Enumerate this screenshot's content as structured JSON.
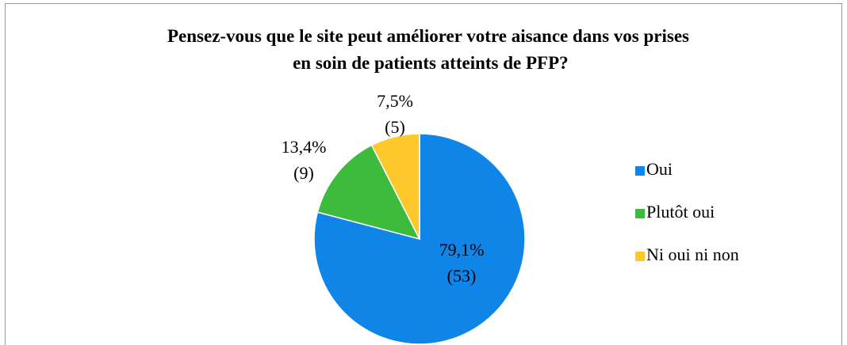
{
  "chart_data": {
    "type": "pie",
    "title": "Pensez-vous que le site peut améliorer votre aisance dans vos prises en soin de patients atteints de PFP?",
    "categories": [
      "Oui",
      "Plutôt oui",
      "Ni oui ni non"
    ],
    "values": [
      79.1,
      13.4,
      7.5
    ],
    "value_labels": [
      "79,1%",
      "13,4%",
      "7,5%"
    ],
    "count_labels": [
      "(53)",
      "(9)",
      "(5)"
    ],
    "colors": [
      "#0f85e8",
      "#3cbb3c",
      "#ffc82a"
    ],
    "legend": "right"
  }
}
